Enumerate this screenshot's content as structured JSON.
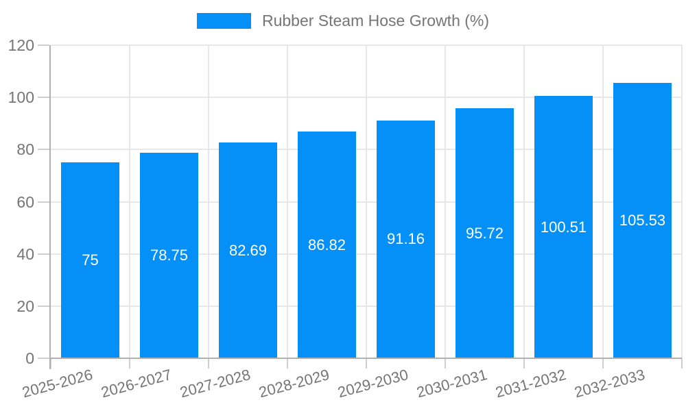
{
  "colors": {
    "bar": "#0590f8",
    "grid": "#e7e7e7",
    "axis": "#b0b0b0",
    "tick": "#cfcfcf",
    "label_text": "#757575",
    "bar_label_text": "#ffffff",
    "background": "#ffffff"
  },
  "legend": {
    "label": "Rubber Steam Hose Growth (%)",
    "position": "top"
  },
  "chart_data": {
    "type": "bar",
    "title": "",
    "xlabel": "",
    "ylabel": "",
    "categories": [
      "2025-2026",
      "2026-2027",
      "2027-2028",
      "2028-2029",
      "2029-2030",
      "2030-2031",
      "2031-2032",
      "2032-2033"
    ],
    "series": [
      {
        "name": "Rubber Steam Hose Growth (%)",
        "values": [
          75,
          78.75,
          82.69,
          86.82,
          91.16,
          95.72,
          100.51,
          105.53
        ]
      }
    ],
    "value_labels": [
      "75",
      "78.75",
      "82.69",
      "86.82",
      "91.16",
      "95.72",
      "100.51",
      "105.53"
    ],
    "ylim": [
      0,
      120
    ],
    "yticks": [
      0,
      20,
      40,
      60,
      80,
      100,
      120
    ],
    "grid": true,
    "legend_position": "top",
    "bar_label_position": "center-inside",
    "x_label_rotation_deg": -15
  }
}
